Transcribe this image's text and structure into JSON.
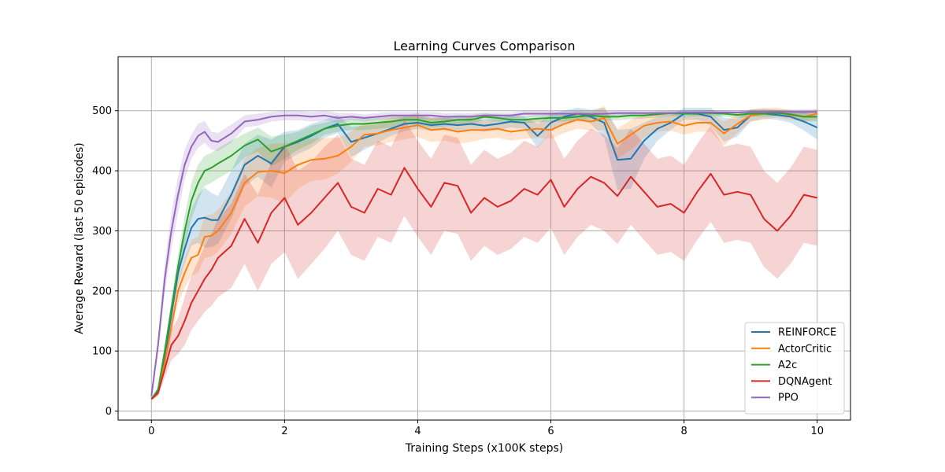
{
  "chart_data": {
    "type": "line",
    "title": "Learning Curves Comparison",
    "xlabel": "Training Steps (x100K steps)",
    "ylabel": "Average Reward (last 50 episodes)",
    "xlim": [
      -0.5,
      10.5
    ],
    "ylim": [
      -15,
      590
    ],
    "xticks": [
      0,
      2,
      4,
      6,
      8,
      10
    ],
    "yticks": [
      0,
      100,
      200,
      300,
      400,
      500
    ],
    "grid": true,
    "legend_position": "lower-right",
    "shaded_band": "variability band around each series",
    "x": [
      0,
      0.1,
      0.2,
      0.3,
      0.4,
      0.5,
      0.6,
      0.7,
      0.8,
      0.9,
      1.0,
      1.2,
      1.4,
      1.6,
      1.8,
      2.0,
      2.2,
      2.4,
      2.6,
      2.8,
      3.0,
      3.2,
      3.4,
      3.6,
      3.8,
      4.0,
      4.2,
      4.4,
      4.6,
      4.8,
      5.0,
      5.2,
      5.4,
      5.6,
      5.8,
      6.0,
      6.2,
      6.4,
      6.6,
      6.8,
      7.0,
      7.2,
      7.4,
      7.6,
      7.8,
      8.0,
      8.2,
      8.4,
      8.6,
      8.8,
      9.0,
      9.2,
      9.4,
      9.6,
      9.8,
      10.0
    ],
    "series": [
      {
        "name": "REINFORCE",
        "color": "#1f77b4",
        "values": [
          20,
          35,
          90,
          160,
          230,
          270,
          305,
          320,
          322,
          318,
          318,
          360,
          410,
          425,
          412,
          440,
          448,
          458,
          470,
          478,
          448,
          455,
          462,
          470,
          478,
          480,
          476,
          478,
          476,
          478,
          475,
          478,
          482,
          480,
          458,
          480,
          490,
          495,
          490,
          480,
          418,
          420,
          450,
          470,
          480,
          495,
          495,
          490,
          468,
          472,
          492,
          495,
          493,
          490,
          482,
          472
        ],
        "spread": [
          2,
          5,
          10,
          15,
          20,
          25,
          30,
          40,
          50,
          45,
          40,
          40,
          35,
          35,
          40,
          25,
          20,
          20,
          15,
          15,
          25,
          20,
          15,
          12,
          12,
          10,
          10,
          10,
          10,
          10,
          10,
          10,
          10,
          10,
          20,
          15,
          10,
          10,
          12,
          25,
          50,
          50,
          30,
          20,
          12,
          10,
          10,
          15,
          20,
          15,
          10,
          8,
          8,
          10,
          15,
          20
        ]
      },
      {
        "name": "ActorCritic",
        "color": "#ff7f0e",
        "values": [
          20,
          30,
          80,
          140,
          200,
          230,
          255,
          260,
          290,
          292,
          300,
          330,
          380,
          398,
          400,
          396,
          410,
          418,
          420,
          425,
          440,
          460,
          462,
          468,
          472,
          476,
          468,
          470,
          465,
          468,
          468,
          470,
          465,
          468,
          470,
          468,
          478,
          485,
          482,
          488,
          445,
          460,
          475,
          480,
          482,
          475,
          480,
          480,
          462,
          478,
          492,
          495,
          497,
          493,
          490,
          495
        ],
        "spread": [
          2,
          5,
          10,
          15,
          20,
          25,
          30,
          30,
          35,
          35,
          35,
          35,
          40,
          40,
          45,
          50,
          40,
          35,
          35,
          30,
          25,
          20,
          20,
          20,
          20,
          20,
          20,
          20,
          20,
          20,
          15,
          15,
          15,
          15,
          15,
          15,
          15,
          15,
          15,
          20,
          25,
          25,
          20,
          15,
          15,
          15,
          15,
          15,
          20,
          15,
          10,
          10,
          8,
          8,
          8,
          8
        ]
      },
      {
        "name": "A2c",
        "color": "#2ca02c",
        "values": [
          20,
          35,
          100,
          170,
          240,
          300,
          350,
          380,
          400,
          405,
          412,
          425,
          442,
          452,
          432,
          440,
          450,
          460,
          470,
          475,
          478,
          478,
          480,
          482,
          485,
          485,
          480,
          482,
          485,
          485,
          490,
          488,
          485,
          485,
          487,
          488,
          488,
          490,
          492,
          490,
          490,
          492,
          492,
          494,
          496,
          495,
          496,
          496,
          495,
          493,
          495,
          495,
          496,
          494,
          490,
          490
        ],
        "spread": [
          2,
          5,
          10,
          15,
          20,
          25,
          30,
          30,
          25,
          25,
          25,
          25,
          20,
          20,
          25,
          20,
          15,
          15,
          10,
          10,
          10,
          10,
          10,
          10,
          8,
          8,
          8,
          8,
          8,
          8,
          6,
          6,
          6,
          6,
          6,
          6,
          6,
          6,
          6,
          6,
          6,
          6,
          5,
          5,
          5,
          5,
          5,
          5,
          5,
          5,
          5,
          5,
          5,
          5,
          8,
          8
        ]
      },
      {
        "name": "DQNAgent",
        "color": "#d62728",
        "values": [
          20,
          30,
          70,
          110,
          125,
          150,
          180,
          200,
          220,
          235,
          255,
          275,
          320,
          280,
          330,
          355,
          310,
          330,
          355,
          380,
          340,
          330,
          370,
          360,
          405,
          370,
          340,
          380,
          375,
          330,
          355,
          340,
          350,
          370,
          360,
          385,
          340,
          370,
          390,
          380,
          358,
          390,
          365,
          340,
          345,
          330,
          365,
          395,
          360,
          365,
          360,
          320,
          300,
          325,
          360,
          355
        ],
        "spread": [
          2,
          5,
          15,
          25,
          30,
          40,
          45,
          50,
          55,
          60,
          65,
          70,
          75,
          80,
          85,
          90,
          90,
          85,
          85,
          80,
          80,
          80,
          80,
          80,
          80,
          80,
          80,
          80,
          80,
          80,
          80,
          80,
          80,
          80,
          80,
          80,
          80,
          80,
          80,
          80,
          80,
          80,
          80,
          80,
          80,
          80,
          80,
          80,
          80,
          80,
          80,
          80,
          80,
          80,
          80,
          80
        ]
      },
      {
        "name": "PPO",
        "color": "#9467bd",
        "values": [
          25,
          110,
          220,
          300,
          360,
          410,
          440,
          458,
          465,
          450,
          448,
          462,
          482,
          485,
          490,
          492,
          492,
          490,
          492,
          488,
          490,
          488,
          490,
          492,
          492,
          492,
          492,
          490,
          490,
          490,
          492,
          492,
          492,
          495,
          495,
          495,
          495,
          495,
          494,
          495,
          496,
          496,
          496,
          496,
          496,
          497,
          497,
          497,
          497,
          497,
          498,
          498,
          498,
          498,
          498,
          498
        ],
        "spread": [
          3,
          15,
          25,
          30,
          30,
          25,
          20,
          20,
          18,
          15,
          15,
          15,
          10,
          10,
          8,
          8,
          8,
          8,
          8,
          8,
          6,
          6,
          6,
          6,
          6,
          6,
          6,
          6,
          6,
          6,
          5,
          5,
          5,
          5,
          5,
          5,
          5,
          5,
          5,
          5,
          4,
          4,
          4,
          4,
          4,
          4,
          4,
          4,
          4,
          4,
          4,
          4,
          4,
          4,
          4,
          4
        ]
      }
    ]
  }
}
